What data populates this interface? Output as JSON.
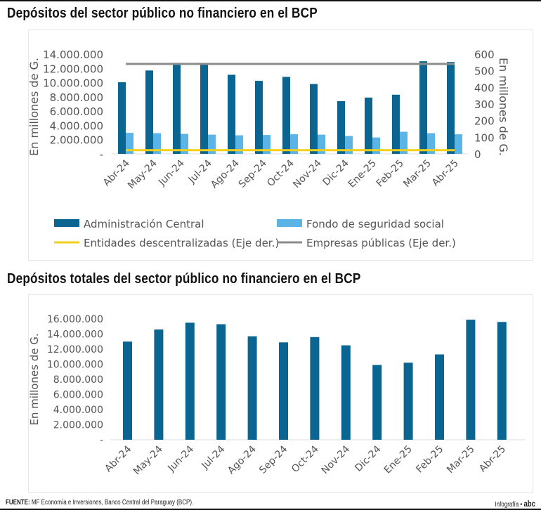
{
  "chart_data": [
    {
      "type": "bar",
      "title": "Depósitos del sector público no financiero en el BCP",
      "categories": [
        "Abr-24",
        "May-24",
        "Jun-24",
        "Jul-24",
        "Ago-24",
        "Sep-24",
        "Oct-24",
        "Nov-24",
        "Dic-24",
        "Ene-25",
        "Feb-25",
        "Mar-25",
        "Abr-25"
      ],
      "ylabel": "En millones de G.",
      "ylabel_right": "En millones de G.",
      "ylim": [
        0,
        14000000
      ],
      "ylim_right": [
        0,
        600
      ],
      "yticks": [
        "-",
        "2.000.000",
        "4.000.000",
        "6.000.000",
        "8.000.000",
        "10.000.000",
        "12.000.000",
        "14.000.000"
      ],
      "yticks_right": [
        "0",
        "100",
        "200",
        "300",
        "400",
        "500",
        "600"
      ],
      "legend_position": "bottom",
      "series": [
        {
          "name": "Administración Central",
          "kind": "bar",
          "axis": "left",
          "color": "#0a6690",
          "values": [
            10050000,
            11700000,
            12500000,
            12500000,
            11100000,
            10250000,
            10800000,
            9800000,
            7400000,
            7900000,
            8300000,
            13000000,
            12900000
          ]
        },
        {
          "name": "Fondo de seguridad social",
          "kind": "bar",
          "axis": "left",
          "color": "#5ab4e5",
          "values": [
            2950000,
            2900000,
            2800000,
            2700000,
            2600000,
            2650000,
            2750000,
            2700000,
            2500000,
            2300000,
            3100000,
            2900000,
            2750000
          ]
        },
        {
          "name": "Entidades descentralizadas (Eje der.)",
          "kind": "line",
          "axis": "right",
          "color": "#f4cf1a",
          "values": [
            22,
            22,
            22,
            22,
            22,
            22,
            22,
            22,
            22,
            22,
            22,
            22,
            22
          ]
        },
        {
          "name": "Empresas  públicas (Eje der.)",
          "kind": "line",
          "axis": "right",
          "color": "#8c8c8c",
          "values": [
            541,
            541,
            541,
            541,
            541,
            541,
            541,
            541,
            541,
            541,
            541,
            541,
            541
          ]
        }
      ]
    },
    {
      "type": "bar",
      "title": "Depósitos totales del sector público no financiero en el BCP",
      "categories": [
        "Abr-24",
        "May-24",
        "Jun-24",
        "Jul-24",
        "Ago-24",
        "Sep-24",
        "Oct-24",
        "Nov-24",
        "Dic-24",
        "Ene-25",
        "Feb-25",
        "Mar-25",
        "Abr-25"
      ],
      "ylabel": "En millones de G.",
      "ylim": [
        0,
        16000000
      ],
      "yticks": [
        "-",
        "2.000.000",
        "4.000.000",
        "6.000.000",
        "8.000.000",
        "10.000.000",
        "12.000.000",
        "14.000.000",
        "16.000.000"
      ],
      "series": [
        {
          "color": "#0a6690",
          "values": [
            13000000,
            14600000,
            15500000,
            15300000,
            13700000,
            12900000,
            13600000,
            12500000,
            9900000,
            10200000,
            11300000,
            15900000,
            15600000
          ]
        }
      ]
    }
  ],
  "footer": {
    "source_label": "FUENTE:",
    "source_text": " MF Economía e Inversiones, Banco Central del Paraguay (BCP).",
    "credit": "Infografía •",
    "logo": "abc"
  }
}
